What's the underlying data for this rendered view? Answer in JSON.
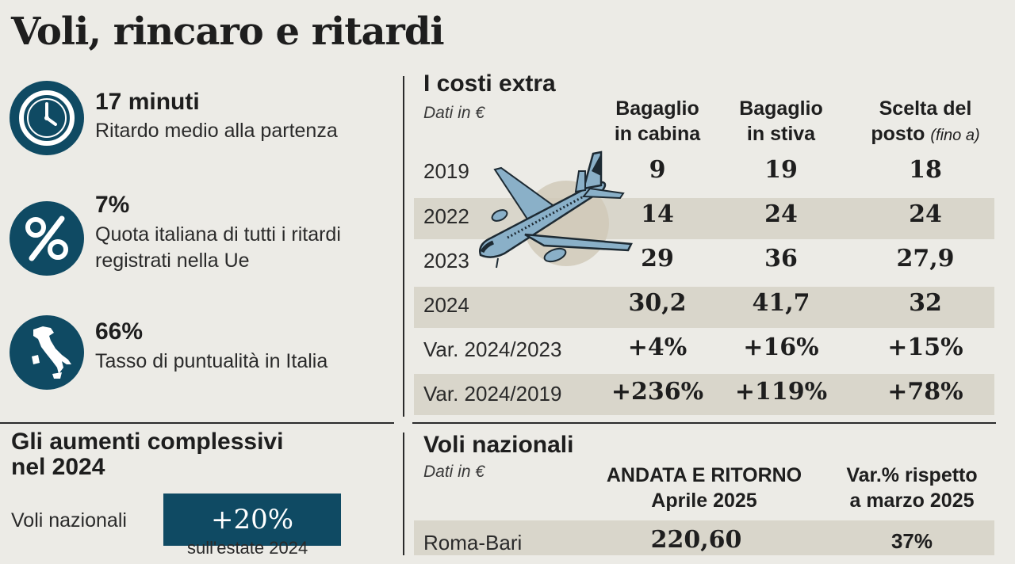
{
  "page": {
    "title": "Voli, rincaro e ritardi"
  },
  "stats": [
    {
      "icon": "clock-icon",
      "value": "17 minuti",
      "desc": "Ritardo medio alla partenza"
    },
    {
      "icon": "percent-icon",
      "value": "7%",
      "desc": "Quota italiana di tutti i ritardi registrati nella Ue"
    },
    {
      "icon": "italy-map-icon",
      "value": "66%",
      "desc": "Tasso di puntualità in Italia"
    }
  ],
  "colors": {
    "accent": "#0f4a63",
    "band": "#d9d6cb",
    "background": "#ecebe6"
  },
  "costs": {
    "title": "I costi extra",
    "subtitle": "Dati in €",
    "col1": [
      "Bagaglio",
      "in cabina"
    ],
    "col2": [
      "Bagaglio",
      "in stiva"
    ],
    "col3_a": "Scelta del",
    "col3_b": "posto",
    "col3_note": "(fino a)",
    "rows": [
      {
        "label": "2019",
        "cabina": "9",
        "stiva": "19",
        "posto": "18"
      },
      {
        "label": "2022",
        "cabina": "14",
        "stiva": "24",
        "posto": "24"
      },
      {
        "label": "2023",
        "cabina": "29",
        "stiva": "36",
        "posto": "27,9"
      },
      {
        "label": "2024",
        "cabina": "30,2",
        "stiva": "41,7",
        "posto": "32"
      },
      {
        "label": "Var. 2024/2023",
        "cabina": "+4%",
        "stiva": "+16%",
        "posto": "+15%"
      },
      {
        "label": "Var. 2024/2019",
        "cabina": "+236%",
        "stiva": "+119%",
        "posto": "+78%"
      }
    ]
  },
  "aumenti": {
    "title_1": "Gli aumenti complessivi",
    "title_2": "nel 2024",
    "label": "Voli nazionali",
    "value": "+20%",
    "note": "sull'estate 2024"
  },
  "nazionali": {
    "title": "Voli nazionali",
    "subtitle": "Dati in €",
    "col1": [
      "ANDATA E RITORNO",
      "Aprile 2025"
    ],
    "col2": [
      "Var.% rispetto",
      "a marzo 2025"
    ],
    "rows": [
      {
        "route": "Roma-Bari",
        "price": "220,60",
        "var": "37%"
      }
    ]
  },
  "chart_data": {
    "type": "table",
    "title": "I costi extra",
    "columns": [
      "Bagaglio in cabina",
      "Bagaglio in stiva",
      "Scelta del posto (fino a)"
    ],
    "rows": [
      "2019",
      "2022",
      "2023",
      "2024",
      "Var. 2024/2023",
      "Var. 2024/2019"
    ],
    "values": [
      [
        9,
        19,
        18
      ],
      [
        14,
        24,
        24
      ],
      [
        29,
        36,
        27.9
      ],
      [
        30.2,
        41.7,
        32
      ],
      [
        "+4%",
        "+16%",
        "+15%"
      ],
      [
        "+236%",
        "+119%",
        "+78%"
      ]
    ]
  }
}
